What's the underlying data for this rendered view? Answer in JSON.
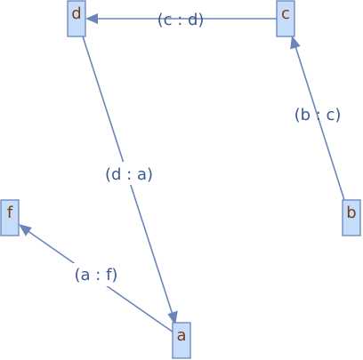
{
  "graph": {
    "nodes": [
      {
        "id": "d",
        "label": "d"
      },
      {
        "id": "c",
        "label": "c"
      },
      {
        "id": "b",
        "label": "b"
      },
      {
        "id": "f",
        "label": "f"
      },
      {
        "id": "a",
        "label": "a"
      }
    ],
    "edges": [
      {
        "id": "c-d",
        "from": "c",
        "to": "d",
        "label": "(c : d)"
      },
      {
        "id": "b-c",
        "from": "b",
        "to": "c",
        "label": "(b : c)"
      },
      {
        "id": "d-a",
        "from": "d",
        "to": "a",
        "label": "(d : a)"
      },
      {
        "id": "a-f",
        "from": "a",
        "to": "f",
        "label": "(a : f)"
      }
    ],
    "colors": {
      "node_fill": "#c6dcfb",
      "node_stroke": "#6a86b9",
      "node_text": "#7a3d12",
      "edge": "#6a86b9",
      "edge_text": "#3c5a91"
    }
  }
}
